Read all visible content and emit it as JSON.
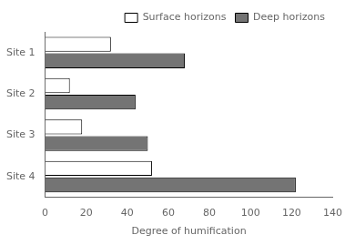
{
  "chart_data": {
    "type": "bar",
    "orientation": "horizontal",
    "categories": [
      "Site 1",
      "Site 2",
      "Site 3",
      "Site 4"
    ],
    "series": [
      {
        "name": "Surface horizons",
        "color": "#ffffff",
        "values": [
          32,
          12,
          18,
          52
        ]
      },
      {
        "name": "Deep horizons",
        "color": "#747474",
        "values": [
          68,
          44,
          50,
          122
        ]
      }
    ],
    "xlabel": "Degree of humification",
    "xlim": [
      0,
      140
    ],
    "xticks": [
      0,
      20,
      40,
      60,
      80,
      100,
      120,
      140
    ],
    "grid": false,
    "legend": "upper right"
  }
}
